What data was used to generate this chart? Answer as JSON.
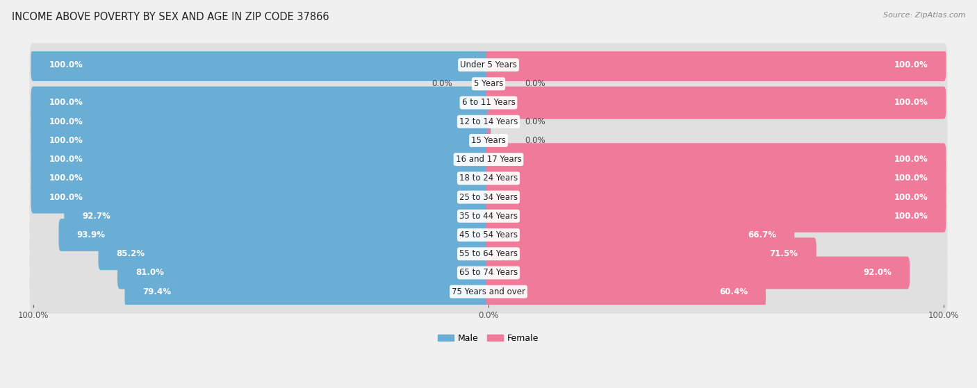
{
  "title": "INCOME ABOVE POVERTY BY SEX AND AGE IN ZIP CODE 37866",
  "source": "Source: ZipAtlas.com",
  "categories": [
    "Under 5 Years",
    "5 Years",
    "6 to 11 Years",
    "12 to 14 Years",
    "15 Years",
    "16 and 17 Years",
    "18 to 24 Years",
    "25 to 34 Years",
    "35 to 44 Years",
    "45 to 54 Years",
    "55 to 64 Years",
    "65 to 74 Years",
    "75 Years and over"
  ],
  "male": [
    100.0,
    0.0,
    100.0,
    100.0,
    100.0,
    100.0,
    100.0,
    100.0,
    92.7,
    93.9,
    85.2,
    81.0,
    79.4
  ],
  "female": [
    100.0,
    0.0,
    100.0,
    0.0,
    0.0,
    100.0,
    100.0,
    100.0,
    100.0,
    66.7,
    71.5,
    92.0,
    60.4
  ],
  "male_color": "#6aaed6",
  "female_color": "#f07a9a",
  "male_label": "Male",
  "female_label": "Female",
  "background_color": "#f0f0f0",
  "row_bg_color": "#e0e0e0",
  "title_fontsize": 10.5,
  "source_fontsize": 8,
  "label_fontsize": 8.5,
  "cat_label_fontsize": 8.5,
  "tick_fontsize": 8.5
}
